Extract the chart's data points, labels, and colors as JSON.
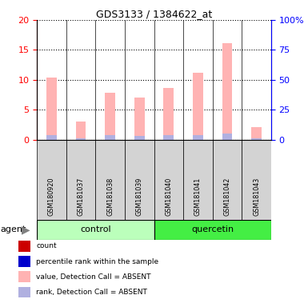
{
  "title": "GDS3133 / 1384622_at",
  "samples": [
    "GSM180920",
    "GSM181037",
    "GSM181038",
    "GSM181039",
    "GSM181040",
    "GSM181041",
    "GSM181042",
    "GSM181043"
  ],
  "count_values": [
    0,
    0,
    0,
    0,
    0,
    0,
    0,
    0
  ],
  "rank_values": [
    4.1,
    1.3,
    3.55,
    3.35,
    3.9,
    4.1,
    4.85,
    1.1
  ],
  "absent_value_values": [
    10.4,
    3.05,
    7.85,
    7.05,
    8.6,
    11.2,
    16.1,
    2.1
  ],
  "absent_rank_values": [
    4.15,
    1.35,
    3.6,
    3.4,
    3.9,
    4.15,
    4.9,
    1.15
  ],
  "ylim_left": [
    0,
    20
  ],
  "ylim_right": [
    0,
    100
  ],
  "yticks_left": [
    0,
    5,
    10,
    15,
    20
  ],
  "yticks_right": [
    0,
    25,
    50,
    75,
    100
  ],
  "ytick_labels_right": [
    "0",
    "25",
    "50",
    "75",
    "100%"
  ],
  "color_count": "#cc0000",
  "color_rank": "#0000cc",
  "color_absent_value": "#ffb3b3",
  "color_absent_rank": "#b0b0e0",
  "group_control_color": "#bbffbb",
  "group_quercetin_color": "#44ee44",
  "bar_bg_color": "#d3d3d3",
  "bar_width": 0.35,
  "legend_items": [
    {
      "color": "#cc0000",
      "label": "count"
    },
    {
      "color": "#0000cc",
      "label": "percentile rank within the sample"
    },
    {
      "color": "#ffb3b3",
      "label": "value, Detection Call = ABSENT"
    },
    {
      "color": "#b0b0e0",
      "label": "rank, Detection Call = ABSENT"
    }
  ]
}
